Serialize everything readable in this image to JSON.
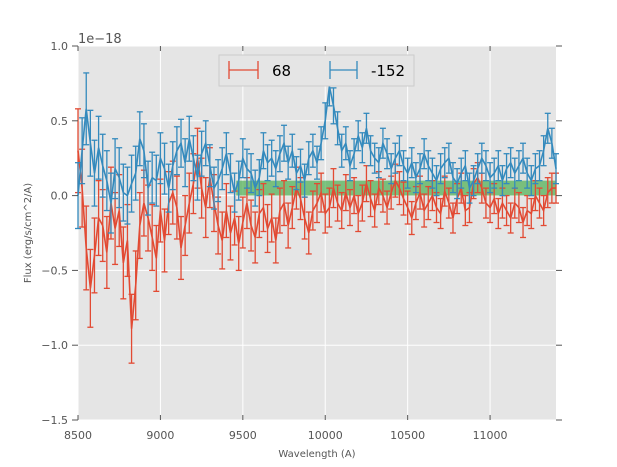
{
  "chart_data": {
    "type": "line",
    "subtype": "errorbar",
    "title": "",
    "xlabel": "Wavelength (A)",
    "ylabel": "Flux (erg/s/cm^2/A)",
    "y_offset_label": "1e−18",
    "xlim": [
      8500,
      11400
    ],
    "ylim": [
      -1.5,
      1.0
    ],
    "xticks": [
      8500,
      9000,
      9500,
      10000,
      10500,
      11000
    ],
    "xtick_labels": [
      "8500",
      "9000",
      "9500",
      "10000",
      "10500",
      "11000"
    ],
    "yticks": [
      1.0,
      0.5,
      0.0,
      -0.5,
      -1.0,
      -1.5
    ],
    "ytick_labels": [
      "1.0",
      "0.5",
      "0.0",
      "−0.5",
      "−1.0",
      "−1.5"
    ],
    "grid": true,
    "background": "#e5e5e5",
    "legend": {
      "placement": "top-center",
      "entries": [
        "68",
        "-152"
      ]
    },
    "x_start": 8500,
    "x_step": 25,
    "band": {
      "x0": 9460,
      "x1": 11400,
      "y0": 0.0,
      "y1": 0.1,
      "color": "#4caf50"
    },
    "series": [
      {
        "name": "68",
        "color": "#e24a33",
        "values": [
          0.3,
          0.05,
          -0.35,
          -0.62,
          -0.4,
          -0.15,
          -0.2,
          -0.38,
          -0.05,
          -0.22,
          -0.1,
          -0.45,
          -0.3,
          -0.89,
          -0.6,
          -0.2,
          -0.05,
          -0.15,
          -0.28,
          -0.42,
          -0.1,
          -0.3,
          -0.05,
          0.02,
          -0.08,
          -0.35,
          -0.2,
          -0.05,
          0.08,
          0.25,
          0.05,
          -0.08,
          0.12,
          -0.05,
          -0.2,
          -0.3,
          -0.1,
          -0.25,
          -0.15,
          -0.32,
          -0.18,
          -0.05,
          -0.2,
          -0.28,
          -0.12,
          -0.08,
          -0.22,
          -0.15,
          -0.3,
          -0.1,
          -0.05,
          -0.2,
          -0.08,
          0.05,
          -0.02,
          -0.15,
          -0.25,
          -0.1,
          -0.05,
          0.02,
          -0.12,
          -0.08,
          0.05,
          -0.05,
          -0.1,
          0.02,
          -0.08,
          0.0,
          -0.12,
          -0.05,
          0.08,
          -0.02,
          -0.1,
          0.05,
          0.0,
          -0.08,
          0.02,
          0.1,
          0.05,
          -0.02,
          -0.08,
          -0.15,
          -0.05,
          0.02,
          -0.1,
          -0.05,
          0.0,
          -0.08,
          -0.12,
          0.03,
          -0.05,
          -0.15,
          -0.02,
          0.05,
          -0.1,
          -0.08,
          0.08,
          0.12,
          0.05,
          -0.05,
          -0.08,
          -0.02,
          -0.12,
          -0.05,
          -0.1,
          -0.15,
          -0.05,
          -0.08,
          -0.18,
          -0.1,
          -0.12,
          0.0,
          -0.05,
          -0.1,
          0.02,
          0.05,
          0.05
        ],
        "errors": [
          0.28,
          0.26,
          0.28,
          0.26,
          0.25,
          0.25,
          0.24,
          0.24,
          0.24,
          0.24,
          0.24,
          0.24,
          0.24,
          0.23,
          0.23,
          0.22,
          0.22,
          0.22,
          0.22,
          0.22,
          0.21,
          0.21,
          0.21,
          0.21,
          0.21,
          0.21,
          0.2,
          0.2,
          0.2,
          0.2,
          0.2,
          0.2,
          0.2,
          0.19,
          0.19,
          0.19,
          0.18,
          0.18,
          0.18,
          0.18,
          0.17,
          0.17,
          0.17,
          0.17,
          0.16,
          0.16,
          0.16,
          0.16,
          0.15,
          0.15,
          0.15,
          0.15,
          0.14,
          0.14,
          0.14,
          0.14,
          0.14,
          0.13,
          0.13,
          0.13,
          0.13,
          0.13,
          0.13,
          0.12,
          0.12,
          0.12,
          0.12,
          0.12,
          0.12,
          0.12,
          0.12,
          0.12,
          0.11,
          0.11,
          0.11,
          0.11,
          0.11,
          0.11,
          0.11,
          0.11,
          0.11,
          0.11,
          0.11,
          0.11,
          0.11,
          0.11,
          0.1,
          0.1,
          0.1,
          0.1,
          0.1,
          0.1,
          0.1,
          0.1,
          0.1,
          0.1,
          0.1,
          0.1,
          0.1,
          0.1,
          0.1,
          0.1,
          0.1,
          0.1,
          0.1,
          0.1,
          0.1,
          0.1,
          0.1,
          0.1,
          0.1,
          0.1,
          0.1,
          0.1,
          0.1,
          0.1,
          0.1
        ]
      },
      {
        "name": "-152",
        "color": "#348abd",
        "values": [
          0.0,
          0.3,
          0.58,
          0.35,
          0.15,
          0.32,
          0.2,
          0.1,
          -0.05,
          0.18,
          0.12,
          0.02,
          0.0,
          0.08,
          0.15,
          0.38,
          0.3,
          0.05,
          0.12,
          0.1,
          0.25,
          0.18,
          0.05,
          0.2,
          0.3,
          0.35,
          0.22,
          0.38,
          0.25,
          0.12,
          0.28,
          0.35,
          0.2,
          0.05,
          0.1,
          0.18,
          0.28,
          0.15,
          0.02,
          0.1,
          0.25,
          0.18,
          0.15,
          0.05,
          0.12,
          0.3,
          0.22,
          0.25,
          0.18,
          0.28,
          0.35,
          0.22,
          0.3,
          0.15,
          0.2,
          0.1,
          0.25,
          0.3,
          0.22,
          0.35,
          0.5,
          0.73,
          0.6,
          0.45,
          0.3,
          0.35,
          0.2,
          0.28,
          0.4,
          0.32,
          0.45,
          0.3,
          0.25,
          0.22,
          0.35,
          0.28,
          0.18,
          0.25,
          0.3,
          0.2,
          0.15,
          0.22,
          0.12,
          0.18,
          0.28,
          0.2,
          0.15,
          0.1,
          0.18,
          0.22,
          0.25,
          0.12,
          0.08,
          0.15,
          0.2,
          0.05,
          0.1,
          0.18,
          0.25,
          0.2,
          0.12,
          0.15,
          0.2,
          0.1,
          0.18,
          0.22,
          0.15,
          0.2,
          0.25,
          0.15,
          0.1,
          0.18,
          0.2,
          0.3,
          0.45,
          0.35,
          0.18
        ],
        "errors": [
          0.22,
          0.22,
          0.24,
          0.22,
          0.22,
          0.21,
          0.21,
          0.2,
          0.2,
          0.2,
          0.2,
          0.19,
          0.19,
          0.19,
          0.18,
          0.18,
          0.18,
          0.18,
          0.17,
          0.17,
          0.17,
          0.17,
          0.16,
          0.16,
          0.16,
          0.16,
          0.16,
          0.15,
          0.15,
          0.15,
          0.15,
          0.15,
          0.14,
          0.14,
          0.14,
          0.14,
          0.14,
          0.13,
          0.13,
          0.13,
          0.13,
          0.13,
          0.13,
          0.12,
          0.12,
          0.12,
          0.12,
          0.12,
          0.12,
          0.12,
          0.12,
          0.11,
          0.11,
          0.11,
          0.11,
          0.11,
          0.11,
          0.11,
          0.11,
          0.11,
          0.12,
          0.13,
          0.12,
          0.11,
          0.11,
          0.11,
          0.1,
          0.1,
          0.1,
          0.1,
          0.1,
          0.1,
          0.1,
          0.1,
          0.1,
          0.1,
          0.1,
          0.1,
          0.1,
          0.1,
          0.1,
          0.1,
          0.1,
          0.1,
          0.1,
          0.1,
          0.1,
          0.1,
          0.1,
          0.1,
          0.1,
          0.1,
          0.1,
          0.1,
          0.1,
          0.1,
          0.1,
          0.1,
          0.1,
          0.1,
          0.1,
          0.1,
          0.1,
          0.1,
          0.1,
          0.1,
          0.1,
          0.1,
          0.1,
          0.1,
          0.1,
          0.1,
          0.1,
          0.1,
          0.1,
          0.1,
          0.1
        ]
      }
    ]
  }
}
